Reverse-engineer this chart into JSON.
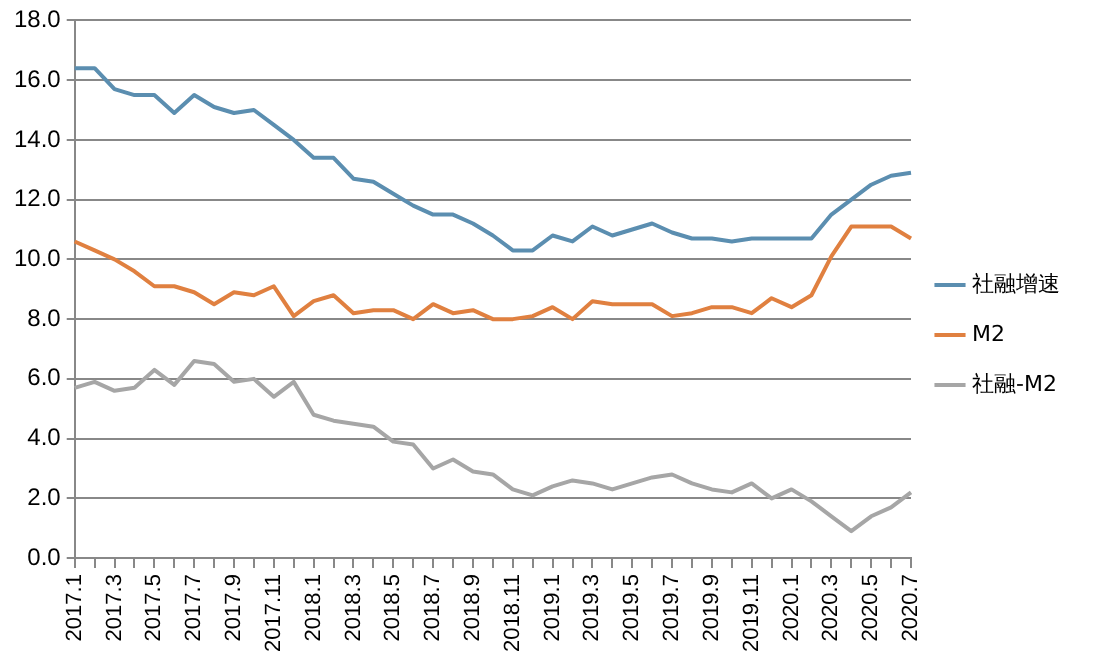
{
  "chart_data": {
    "type": "line",
    "categories": [
      "2017.1",
      null,
      "2017.3",
      null,
      "2017.5",
      null,
      "2017.7",
      null,
      "2017.9",
      null,
      "2017.11",
      null,
      "2018.1",
      null,
      "2018.3",
      null,
      "2018.5",
      null,
      "2018.7",
      null,
      "2018.9",
      null,
      "2018.11",
      null,
      "2019.1",
      null,
      "2019.3",
      null,
      "2019.5",
      null,
      "2019.7",
      null,
      "2019.9",
      null,
      "2019.11",
      null,
      "2020.1",
      null,
      "2020.3",
      null,
      "2020.5",
      null,
      "2020.7"
    ],
    "series": [
      {
        "name": "社融增速",
        "color": "#5b8eb0",
        "values": [
          16.4,
          16.4,
          15.7,
          15.5,
          15.5,
          14.9,
          15.5,
          15.1,
          14.9,
          15.0,
          14.5,
          14.0,
          13.4,
          13.4,
          12.7,
          12.6,
          12.2,
          11.8,
          11.5,
          11.5,
          11.2,
          10.8,
          10.3,
          10.3,
          10.8,
          10.6,
          11.1,
          10.8,
          11.0,
          11.2,
          10.9,
          10.7,
          10.7,
          10.6,
          10.7,
          10.7,
          10.7,
          10.7,
          11.5,
          12.0,
          12.5,
          12.8,
          12.9
        ]
      },
      {
        "name": "M2",
        "color": "#e08040",
        "values": [
          10.6,
          10.3,
          10.0,
          9.6,
          9.1,
          9.1,
          8.9,
          8.5,
          8.9,
          8.8,
          9.1,
          8.1,
          8.6,
          8.8,
          8.2,
          8.3,
          8.3,
          8.0,
          8.5,
          8.2,
          8.3,
          8.0,
          8.0,
          8.1,
          8.4,
          8.0,
          8.6,
          8.5,
          8.5,
          8.5,
          8.1,
          8.2,
          8.4,
          8.4,
          8.2,
          8.7,
          8.4,
          8.8,
          10.1,
          11.1,
          11.1,
          11.1,
          10.7
        ]
      },
      {
        "name": "社融-M2",
        "color": "#a6a6a6",
        "values": [
          5.7,
          5.9,
          5.6,
          5.7,
          6.3,
          5.8,
          6.6,
          6.5,
          5.9,
          6.0,
          5.4,
          5.9,
          4.8,
          4.6,
          4.5,
          4.4,
          3.9,
          3.8,
          3.0,
          3.3,
          2.9,
          2.8,
          2.3,
          2.1,
          2.4,
          2.6,
          2.5,
          2.3,
          2.5,
          2.7,
          2.8,
          2.5,
          2.3,
          2.2,
          2.5,
          2.0,
          2.3,
          1.9,
          1.4,
          0.9,
          1.4,
          1.7,
          2.2
        ]
      }
    ],
    "ylim": [
      0,
      18
    ],
    "yticks": [
      {
        "value": 0,
        "label": "0.0"
      },
      {
        "value": 2,
        "label": "2.0"
      },
      {
        "value": 4,
        "label": "4.0"
      },
      {
        "value": 6,
        "label": "6.0"
      },
      {
        "value": 8,
        "label": "8.0"
      },
      {
        "value": 10,
        "label": "10.0"
      },
      {
        "value": 12,
        "label": "12.0"
      },
      {
        "value": 14,
        "label": "14.0"
      },
      {
        "value": 16,
        "label": "16.0"
      },
      {
        "value": 18,
        "label": "18.0"
      }
    ],
    "grid": "y",
    "legend": "right",
    "marker": "none",
    "line_style": "solid"
  }
}
